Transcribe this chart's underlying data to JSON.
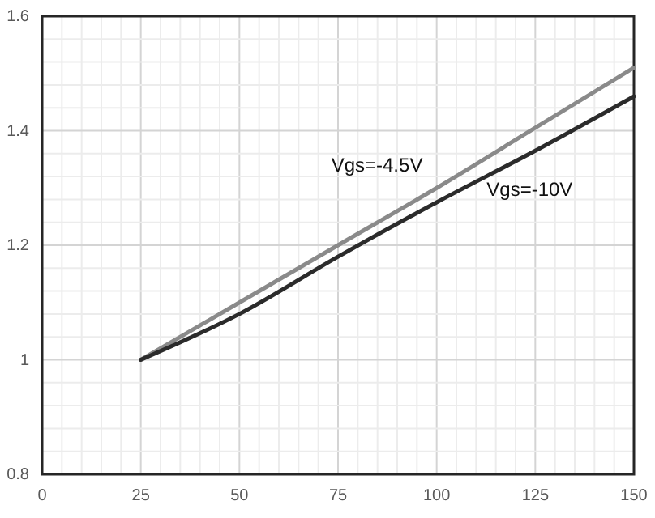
{
  "chart_data": {
    "type": "line",
    "x": [
      25,
      50,
      75,
      100,
      125,
      150
    ],
    "series": [
      {
        "name": "Vgs=-4.5V",
        "color": "#8a8a8a",
        "values": [
          1.0,
          1.1,
          1.2,
          1.3,
          1.405,
          1.51
        ]
      },
      {
        "name": "Vgs=-10V",
        "color": "#2b2b2b",
        "values": [
          1.0,
          1.08,
          1.18,
          1.275,
          1.365,
          1.46
        ]
      }
    ],
    "xlim": [
      0,
      150
    ],
    "xticks": [
      0,
      25,
      50,
      75,
      100,
      125,
      150
    ],
    "ylim": [
      0.8,
      1.6
    ],
    "yticks": [
      {
        "value": 0.8,
        "label": "0.8"
      },
      {
        "value": 1,
        "label": "1"
      },
      {
        "value": 1.2,
        "label": "1.2"
      },
      {
        "value": 1.4,
        "label": "1.4"
      },
      {
        "value": 1.6,
        "label": "1.6"
      }
    ],
    "grid": true,
    "legend": false,
    "marker": "none",
    "line_style": "solid"
  }
}
